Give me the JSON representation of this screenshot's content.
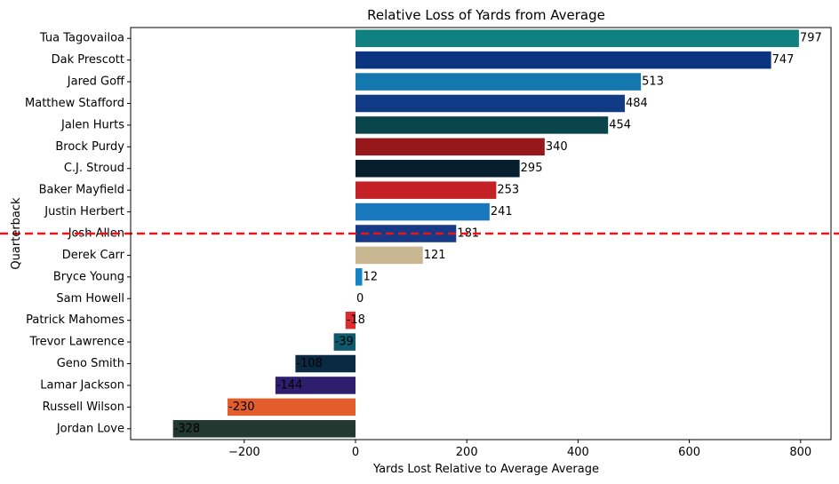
{
  "chart_data": {
    "type": "bar",
    "orientation": "horizontal",
    "title": "Relative Loss of Yards from Average",
    "xlabel": "Yards Lost Relative to Average Average",
    "ylabel": "Quarterback",
    "xlim": [
      -370,
      870
    ],
    "xticks": [
      -200,
      0,
      200,
      400,
      600,
      800
    ],
    "xtick_labels": [
      "−200",
      "0",
      "200",
      "400",
      "600",
      "800"
    ],
    "grid": false,
    "reference_line": {
      "type": "horizontal",
      "at_category": "Josh Allen",
      "style": "dashed",
      "color": "#e8161b"
    },
    "categories": [
      "Tua Tagovailoa",
      "Dak Prescott",
      "Jared Goff",
      "Matthew Stafford",
      "Jalen Hurts",
      "Brock Purdy",
      "C.J. Stroud",
      "Baker Mayfield",
      "Justin Herbert",
      "Josh Allen",
      "Derek Carr",
      "Bryce Young",
      "Sam Howell",
      "Patrick Mahomes",
      "Trevor Lawrence",
      "Geno Smith",
      "Lamar Jackson",
      "Russell Wilson",
      "Jordan Love"
    ],
    "values": [
      797,
      747,
      513,
      484,
      454,
      340,
      295,
      253,
      241,
      181,
      121,
      12,
      0,
      -18,
      -39,
      -108,
      -144,
      -230,
      -328
    ],
    "value_labels": [
      "797",
      "747",
      "513",
      "484",
      "454",
      "340",
      "295",
      "253",
      "241",
      "181",
      "121",
      "12",
      "0",
      "-18",
      "-39",
      "-108",
      "-144",
      "-230",
      "-328"
    ],
    "colors": [
      "#118080",
      "#0b3481",
      "#1477ad",
      "#123b86",
      "#0a454b",
      "#97181b",
      "#061e2e",
      "#c42127",
      "#1877bd",
      "#163a86",
      "#c9b792",
      "#1683c4",
      "#3a5a8c",
      "#d92d30",
      "#0e5a6a",
      "#0a2a44",
      "#2e1e6e",
      "#e35d2c",
      "#233830"
    ]
  }
}
